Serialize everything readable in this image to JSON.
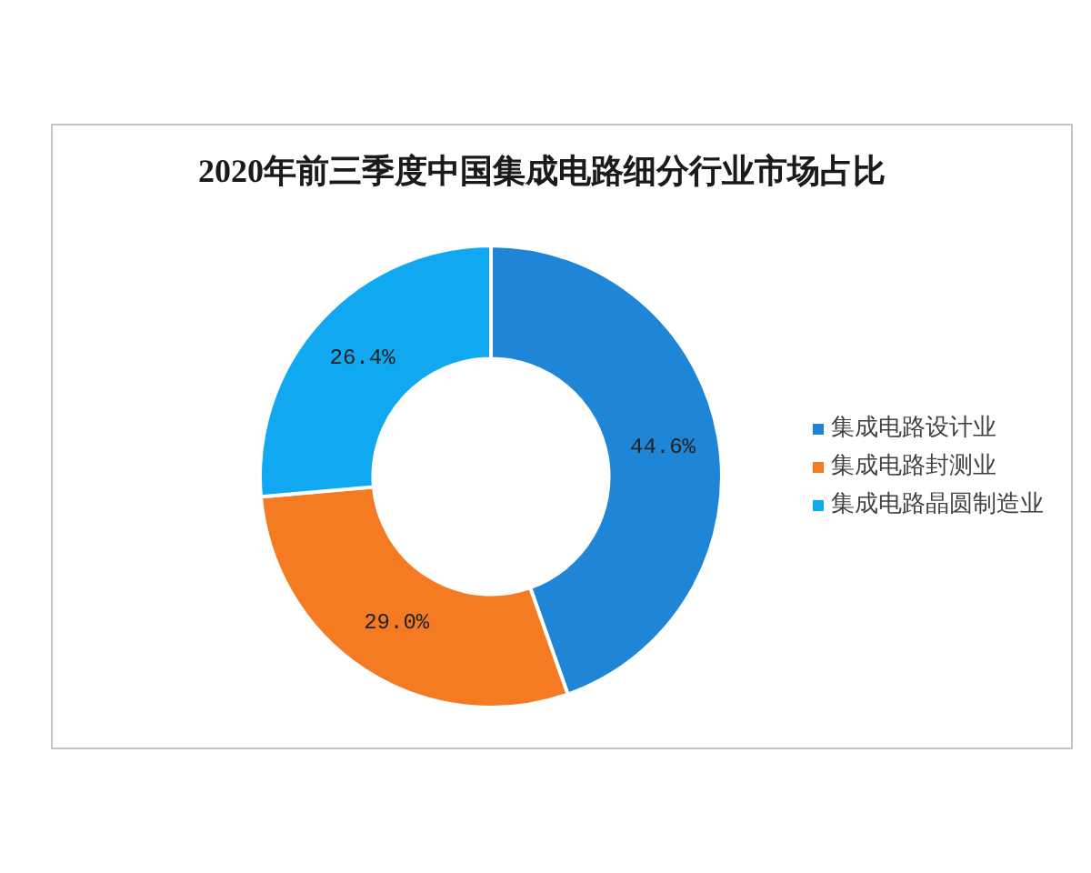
{
  "chart_data": {
    "type": "donut",
    "title": "2020年前三季度中国集成电路细分行业市场占比",
    "categories": [
      "集成电路设计业",
      "集成电路封测业",
      "集成电路晶圆制造业"
    ],
    "values": [
      44.6,
      29.0,
      26.4
    ],
    "colors": [
      "#1f86d7",
      "#f57b23",
      "#10a9f1"
    ],
    "value_labels": [
      "44.6%",
      "29.0%",
      "26.4%"
    ],
    "legend": "right"
  }
}
